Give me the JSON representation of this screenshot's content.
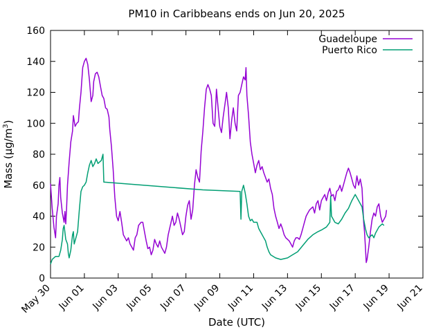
{
  "chart_data": {
    "type": "line",
    "title": "PM10 in Caribbeans ends on Jun 20, 2025",
    "xlabel": "Date (UTC)",
    "ylabel": "Mass (µg/m³)",
    "ylabel_main": "Mass (µg/m",
    "ylabel_sup": "3",
    "ylabel_tail": ")",
    "ylim": [
      0,
      160
    ],
    "yticks": [
      0,
      20,
      40,
      60,
      80,
      100,
      120,
      140,
      160
    ],
    "xlim": [
      "2025-05-30",
      "2025-06-21"
    ],
    "xticks": [
      "May 30",
      "Jun 01",
      "Jun 03",
      "Jun 05",
      "Jun 07",
      "Jun 09",
      "Jun 11",
      "Jun 13",
      "Jun 15",
      "Jun 17",
      "Jun 19",
      "Jun 21"
    ],
    "grid": false,
    "legend_position": "top-right",
    "series": [
      {
        "name": "Guadeloupe",
        "color": "#9400d3",
        "points": [
          [
            0.0,
            61
          ],
          [
            0.1,
            45
          ],
          [
            0.2,
            33
          ],
          [
            0.3,
            26
          ],
          [
            0.35,
            40
          ],
          [
            0.45,
            48
          ],
          [
            0.5,
            60
          ],
          [
            0.55,
            65
          ],
          [
            0.6,
            52
          ],
          [
            0.7,
            42
          ],
          [
            0.8,
            36
          ],
          [
            0.85,
            43
          ],
          [
            0.9,
            35
          ],
          [
            0.95,
            45
          ],
          [
            1.0,
            60
          ],
          [
            1.1,
            75
          ],
          [
            1.2,
            88
          ],
          [
            1.3,
            95
          ],
          [
            1.35,
            105
          ],
          [
            1.45,
            98
          ],
          [
            1.55,
            100
          ],
          [
            1.65,
            101
          ],
          [
            1.7,
            109
          ],
          [
            1.8,
            120
          ],
          [
            1.9,
            136
          ],
          [
            2.0,
            140
          ],
          [
            2.1,
            142
          ],
          [
            2.2,
            138
          ],
          [
            2.3,
            128
          ],
          [
            2.4,
            114
          ],
          [
            2.5,
            118
          ],
          [
            2.55,
            127
          ],
          [
            2.65,
            132
          ],
          [
            2.75,
            133
          ],
          [
            2.85,
            130
          ],
          [
            2.95,
            124
          ],
          [
            3.05,
            118
          ],
          [
            3.15,
            116
          ],
          [
            3.25,
            110
          ],
          [
            3.35,
            109
          ],
          [
            3.45,
            104
          ],
          [
            3.5,
            96
          ],
          [
            3.6,
            85
          ],
          [
            3.7,
            70
          ],
          [
            3.8,
            52
          ],
          [
            3.9,
            40
          ],
          [
            4.0,
            37
          ],
          [
            4.1,
            43
          ],
          [
            4.2,
            36
          ],
          [
            4.3,
            28
          ],
          [
            4.4,
            26
          ],
          [
            4.5,
            24
          ],
          [
            4.6,
            26
          ],
          [
            4.7,
            22
          ],
          [
            4.8,
            20
          ],
          [
            4.9,
            18
          ],
          [
            5.0,
            26
          ],
          [
            5.1,
            28
          ],
          [
            5.2,
            34
          ],
          [
            5.35,
            36
          ],
          [
            5.45,
            36
          ],
          [
            5.55,
            30
          ],
          [
            5.65,
            24
          ],
          [
            5.75,
            19
          ],
          [
            5.85,
            20
          ],
          [
            5.95,
            15
          ],
          [
            6.05,
            18
          ],
          [
            6.15,
            25
          ],
          [
            6.25,
            22
          ],
          [
            6.35,
            20
          ],
          [
            6.45,
            24
          ],
          [
            6.55,
            20
          ],
          [
            6.65,
            18
          ],
          [
            6.75,
            16
          ],
          [
            6.85,
            20
          ],
          [
            6.95,
            28
          ],
          [
            7.1,
            35
          ],
          [
            7.2,
            40
          ],
          [
            7.3,
            34
          ],
          [
            7.4,
            36
          ],
          [
            7.5,
            42
          ],
          [
            7.6,
            38
          ],
          [
            7.7,
            33
          ],
          [
            7.8,
            28
          ],
          [
            7.9,
            30
          ],
          [
            8.0,
            40
          ],
          [
            8.1,
            47
          ],
          [
            8.2,
            50
          ],
          [
            8.3,
            38
          ],
          [
            8.4,
            44
          ],
          [
            8.5,
            60
          ],
          [
            8.6,
            70
          ],
          [
            8.7,
            65
          ],
          [
            8.8,
            62
          ],
          [
            8.9,
            82
          ],
          [
            9.0,
            95
          ],
          [
            9.1,
            110
          ],
          [
            9.2,
            122
          ],
          [
            9.3,
            125
          ],
          [
            9.4,
            122
          ],
          [
            9.5,
            118
          ],
          [
            9.6,
            100
          ],
          [
            9.7,
            98
          ],
          [
            9.8,
            122
          ],
          [
            9.9,
            110
          ],
          [
            10.0,
            98
          ],
          [
            10.1,
            94
          ],
          [
            10.2,
            104
          ],
          [
            10.3,
            112
          ],
          [
            10.4,
            120
          ],
          [
            10.5,
            110
          ],
          [
            10.6,
            90
          ],
          [
            10.7,
            102
          ],
          [
            10.8,
            110
          ],
          [
            10.9,
            100
          ],
          [
            11.0,
            95
          ],
          [
            11.1,
            118
          ],
          [
            11.2,
            120
          ],
          [
            11.3,
            125
          ],
          [
            11.4,
            130
          ],
          [
            11.5,
            128
          ],
          [
            11.55,
            136
          ],
          [
            11.6,
            118
          ],
          [
            11.7,
            105
          ],
          [
            11.8,
            88
          ],
          [
            11.9,
            80
          ],
          [
            12.0,
            74
          ],
          [
            12.1,
            68
          ],
          [
            12.2,
            73
          ],
          [
            12.3,
            76
          ],
          [
            12.4,
            70
          ],
          [
            12.5,
            72
          ],
          [
            12.6,
            68
          ],
          [
            12.7,
            65
          ],
          [
            12.8,
            62
          ],
          [
            12.9,
            64
          ],
          [
            13.0,
            58
          ],
          [
            13.1,
            54
          ],
          [
            13.2,
            45
          ],
          [
            13.3,
            40
          ],
          [
            13.4,
            36
          ],
          [
            13.5,
            32
          ],
          [
            13.6,
            35
          ],
          [
            13.7,
            32
          ],
          [
            13.8,
            28
          ],
          [
            13.9,
            26
          ],
          [
            14.0,
            25
          ],
          [
            14.1,
            24
          ],
          [
            14.2,
            22
          ],
          [
            14.3,
            20
          ],
          [
            14.4,
            24
          ],
          [
            14.5,
            26
          ],
          [
            14.6,
            26
          ],
          [
            14.7,
            25
          ],
          [
            14.8,
            28
          ],
          [
            14.9,
            32
          ],
          [
            15.0,
            36
          ],
          [
            15.1,
            40
          ],
          [
            15.2,
            42
          ],
          [
            15.3,
            44
          ],
          [
            15.4,
            45
          ],
          [
            15.5,
            46
          ],
          [
            15.6,
            42
          ],
          [
            15.7,
            48
          ],
          [
            15.8,
            50
          ],
          [
            15.9,
            44
          ],
          [
            16.0,
            50
          ],
          [
            16.1,
            52
          ],
          [
            16.2,
            54
          ],
          [
            16.3,
            50
          ],
          [
            16.4,
            55
          ],
          [
            16.5,
            58
          ],
          [
            16.6,
            53
          ],
          [
            16.7,
            54
          ],
          [
            16.8,
            50
          ],
          [
            16.9,
            56
          ],
          [
            17.0,
            57
          ],
          [
            17.1,
            60
          ],
          [
            17.2,
            56
          ],
          [
            17.3,
            60
          ],
          [
            17.4,
            64
          ],
          [
            17.5,
            68
          ],
          [
            17.6,
            71
          ],
          [
            17.7,
            68
          ],
          [
            17.8,
            64
          ],
          [
            17.9,
            60
          ],
          [
            18.0,
            58
          ],
          [
            18.1,
            66
          ],
          [
            18.2,
            60
          ],
          [
            18.3,
            64
          ],
          [
            18.4,
            58
          ],
          [
            18.5,
            36
          ],
          [
            18.55,
            30
          ],
          [
            18.6,
            20
          ],
          [
            18.65,
            10
          ],
          [
            18.7,
            12
          ],
          [
            18.8,
            20
          ],
          [
            18.9,
            30
          ],
          [
            19.0,
            38
          ],
          [
            19.1,
            42
          ],
          [
            19.2,
            40
          ],
          [
            19.3,
            46
          ],
          [
            19.4,
            48
          ],
          [
            19.5,
            40
          ],
          [
            19.6,
            36
          ],
          [
            19.7,
            38
          ],
          [
            19.8,
            40
          ],
          [
            19.85,
            44
          ]
        ]
      },
      {
        "name": "Puerto Rico",
        "color": "#009e73",
        "points": [
          [
            0.0,
            9
          ],
          [
            0.1,
            12
          ],
          [
            0.3,
            14
          ],
          [
            0.5,
            14
          ],
          [
            0.6,
            18
          ],
          [
            0.7,
            25
          ],
          [
            0.75,
            32
          ],
          [
            0.8,
            34
          ],
          [
            0.9,
            25
          ],
          [
            1.0,
            22
          ],
          [
            1.05,
            16
          ],
          [
            1.1,
            13
          ],
          [
            1.2,
            18
          ],
          [
            1.3,
            28
          ],
          [
            1.35,
            30
          ],
          [
            1.4,
            22
          ],
          [
            1.5,
            26
          ],
          [
            1.6,
            30
          ],
          [
            1.7,
            44
          ],
          [
            1.8,
            56
          ],
          [
            1.9,
            59
          ],
          [
            2.0,
            60
          ],
          [
            2.1,
            62
          ],
          [
            2.2,
            68
          ],
          [
            2.3,
            73
          ],
          [
            2.4,
            76
          ],
          [
            2.5,
            72
          ],
          [
            2.6,
            74
          ],
          [
            2.7,
            77
          ],
          [
            2.8,
            74
          ],
          [
            2.9,
            75
          ],
          [
            3.0,
            76
          ],
          [
            3.1,
            80
          ],
          [
            3.15,
            62
          ],
          [
            9.0,
            57
          ],
          [
            11.2,
            56
          ],
          [
            11.25,
            38
          ],
          [
            11.3,
            56
          ],
          [
            11.4,
            60
          ],
          [
            11.5,
            55
          ],
          [
            11.6,
            48
          ],
          [
            11.7,
            40
          ],
          [
            11.8,
            37
          ],
          [
            11.9,
            38
          ],
          [
            12.0,
            36
          ],
          [
            12.1,
            36
          ],
          [
            12.2,
            36
          ],
          [
            12.3,
            32
          ],
          [
            12.4,
            30
          ],
          [
            12.5,
            28
          ],
          [
            12.6,
            26
          ],
          [
            12.7,
            24
          ],
          [
            12.8,
            20
          ],
          [
            12.9,
            17
          ],
          [
            13.0,
            15
          ],
          [
            13.3,
            13
          ],
          [
            13.6,
            12
          ],
          [
            14.0,
            13
          ],
          [
            14.3,
            15
          ],
          [
            14.6,
            17
          ],
          [
            14.9,
            21
          ],
          [
            15.2,
            25
          ],
          [
            15.5,
            28
          ],
          [
            15.8,
            30
          ],
          [
            16.0,
            31
          ],
          [
            16.3,
            33
          ],
          [
            16.5,
            36
          ],
          [
            16.55,
            53
          ],
          [
            16.6,
            40
          ],
          [
            16.8,
            36
          ],
          [
            17.0,
            35
          ],
          [
            17.2,
            38
          ],
          [
            17.4,
            42
          ],
          [
            17.6,
            45
          ],
          [
            17.8,
            50
          ],
          [
            18.0,
            54
          ],
          [
            18.2,
            50
          ],
          [
            18.4,
            46
          ],
          [
            18.5,
            38
          ],
          [
            18.6,
            32
          ],
          [
            18.7,
            28
          ],
          [
            18.8,
            26
          ],
          [
            18.9,
            27
          ],
          [
            19.0,
            28
          ],
          [
            19.1,
            26
          ],
          [
            19.2,
            29
          ],
          [
            19.4,
            33
          ],
          [
            19.6,
            35
          ],
          [
            19.7,
            34
          ]
        ]
      }
    ]
  }
}
